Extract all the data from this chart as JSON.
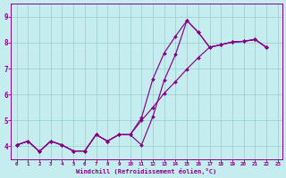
{
  "xlabel": "Windchill (Refroidissement éolien,°C)",
  "background_color": "#c5ecee",
  "line_color": "#880088",
  "grid_color": "#99cccc",
  "xlim_min": -0.5,
  "xlim_max": 23.4,
  "ylim_min": 3.5,
  "ylim_max": 9.5,
  "xticks": [
    0,
    1,
    2,
    3,
    4,
    5,
    6,
    7,
    8,
    9,
    10,
    11,
    12,
    13,
    14,
    15,
    16,
    17,
    18,
    19,
    20,
    21,
    22,
    23
  ],
  "yticks": [
    4,
    5,
    6,
    7,
    8,
    9
  ],
  "x_values": [
    0,
    1,
    2,
    3,
    4,
    5,
    6,
    7,
    8,
    9,
    10,
    11,
    12,
    13,
    14,
    15,
    16,
    17,
    18,
    19,
    20,
    21,
    22
  ],
  "series1": [
    4.05,
    4.2,
    3.8,
    4.2,
    4.05,
    3.82,
    3.82,
    4.45,
    4.2,
    4.45,
    4.45,
    5.1,
    6.6,
    7.6,
    8.25,
    8.85,
    8.4,
    7.82,
    7.92,
    8.02,
    8.05,
    8.12,
    7.82
  ],
  "series2": [
    4.05,
    4.2,
    3.8,
    4.2,
    4.05,
    3.82,
    3.82,
    4.45,
    4.2,
    4.45,
    4.45,
    4.05,
    5.15,
    6.55,
    7.55,
    8.85,
    8.4,
    7.82,
    7.92,
    8.02,
    8.05,
    8.12,
    7.82
  ],
  "series3": [
    4.05,
    4.2,
    3.8,
    4.2,
    4.05,
    3.82,
    3.82,
    4.45,
    4.2,
    4.45,
    4.45,
    5.0,
    5.5,
    6.05,
    6.5,
    6.98,
    7.42,
    7.82,
    7.92,
    8.02,
    8.05,
    8.12,
    7.82
  ]
}
